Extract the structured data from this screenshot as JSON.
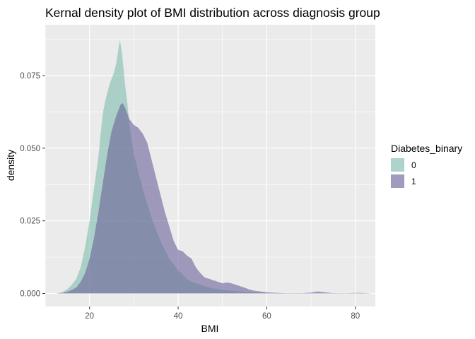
{
  "chart_data": {
    "type": "area",
    "title": "Kernal density plot of BMI distribution across diagnosis group",
    "xlabel": "BMI",
    "ylabel": "density",
    "xlim": [
      10,
      84.5
    ],
    "ylim": [
      -0.0045,
      0.0925
    ],
    "xticks": [
      20,
      40,
      60,
      80
    ],
    "xtick_labels": [
      "20",
      "40",
      "60",
      "80"
    ],
    "yticks": [
      0.0,
      0.025,
      0.05,
      0.075
    ],
    "ytick_labels": [
      "0.000",
      "0.025",
      "0.050",
      "0.075"
    ],
    "grid": true,
    "legend": {
      "title": "Diabetes_binary",
      "position": "right"
    },
    "series": [
      {
        "name": "0",
        "color": "#69b3a2",
        "x": [
          12.5,
          14,
          15,
          16,
          17,
          18,
          19,
          20,
          21,
          22,
          22.5,
          23,
          23.5,
          24,
          24.5,
          25,
          25.5,
          26,
          26.5,
          26.8,
          27,
          27.3,
          27.7,
          28,
          28.5,
          29,
          29.5,
          30,
          31,
          32,
          33,
          34,
          35,
          36,
          37,
          38,
          39,
          40,
          41,
          42,
          43,
          45,
          47,
          50,
          55,
          60,
          65,
          70,
          75,
          80,
          84
        ],
        "y": [
          0.0,
          0.0005,
          0.0015,
          0.003,
          0.005,
          0.009,
          0.016,
          0.025,
          0.036,
          0.047,
          0.055,
          0.062,
          0.066,
          0.069,
          0.072,
          0.074,
          0.076,
          0.079,
          0.084,
          0.087,
          0.086,
          0.083,
          0.077,
          0.072,
          0.066,
          0.058,
          0.053,
          0.048,
          0.042,
          0.036,
          0.031,
          0.026,
          0.022,
          0.018,
          0.015,
          0.012,
          0.01,
          0.008,
          0.0065,
          0.005,
          0.004,
          0.003,
          0.002,
          0.0012,
          0.0005,
          0.0002,
          0.0001,
          0.0001,
          0.0001,
          0.0,
          0.0
        ]
      },
      {
        "name": "1",
        "color": "#6b6299",
        "x": [
          12.5,
          14,
          15,
          16,
          17,
          18,
          19,
          20,
          21,
          22,
          23,
          24,
          25,
          26,
          27,
          27.5,
          28,
          28.5,
          29,
          30,
          31,
          32,
          33,
          34,
          35,
          36,
          37,
          38,
          39,
          40,
          41,
          42,
          43,
          44,
          45,
          46,
          47,
          48,
          49,
          50,
          51,
          52,
          53,
          54,
          55,
          56,
          57,
          58,
          60,
          62,
          64,
          66,
          68,
          70,
          71.5,
          73,
          75,
          78,
          81,
          84
        ],
        "y": [
          0.0,
          0.0002,
          0.0006,
          0.0012,
          0.002,
          0.004,
          0.007,
          0.012,
          0.019,
          0.028,
          0.038,
          0.048,
          0.056,
          0.061,
          0.065,
          0.0655,
          0.064,
          0.062,
          0.06,
          0.058,
          0.057,
          0.055,
          0.052,
          0.046,
          0.04,
          0.034,
          0.028,
          0.023,
          0.018,
          0.015,
          0.0145,
          0.013,
          0.012,
          0.009,
          0.007,
          0.0055,
          0.005,
          0.0045,
          0.004,
          0.0035,
          0.0038,
          0.0035,
          0.003,
          0.0025,
          0.002,
          0.0014,
          0.001,
          0.0008,
          0.0004,
          0.0002,
          0.0001,
          0.0001,
          0.0001,
          0.0003,
          0.0007,
          0.0004,
          0.0001,
          0.0001,
          0.0002,
          0.0
        ]
      }
    ]
  }
}
